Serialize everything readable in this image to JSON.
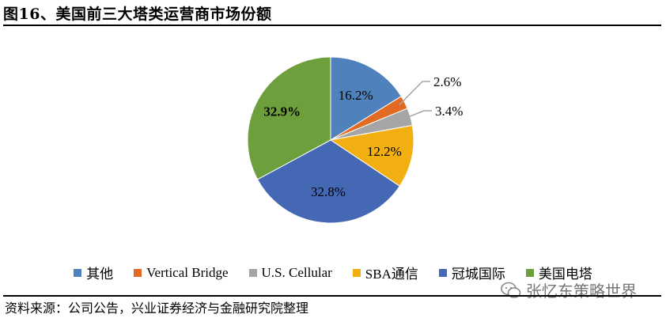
{
  "header": {
    "title": "图16、美国前三大塔类运营商市场份额"
  },
  "footer": {
    "source": "资料来源：公司公告，兴业证券经济与金融研究院整理",
    "watermark": "张忆东策略世界"
  },
  "chart_data": {
    "type": "pie",
    "title": "",
    "slices": [
      {
        "label": "其他",
        "value": 16.2,
        "display": "16.2%",
        "color": "#4F81BD",
        "bold": false
      },
      {
        "label": "Vertical Bridge",
        "value": 2.6,
        "display": "2.6%",
        "color": "#E26B24",
        "bold": false
      },
      {
        "label": "U.S. Cellular",
        "value": 3.4,
        "display": "3.4%",
        "color": "#A5A5A5",
        "bold": false
      },
      {
        "label": "SBA通信",
        "value": 12.2,
        "display": "12.2%",
        "color": "#F2AF12",
        "bold": false
      },
      {
        "label": "冠城国际",
        "value": 32.8,
        "display": "32.8%",
        "color": "#4568B4",
        "bold": false
      },
      {
        "label": "美国电塔",
        "value": 32.9,
        "display": "32.9%",
        "color": "#6D9F3C",
        "bold": true
      }
    ],
    "start_angle": "12 o'clock",
    "direction": "clockwise",
    "legend_position": "bottom"
  }
}
